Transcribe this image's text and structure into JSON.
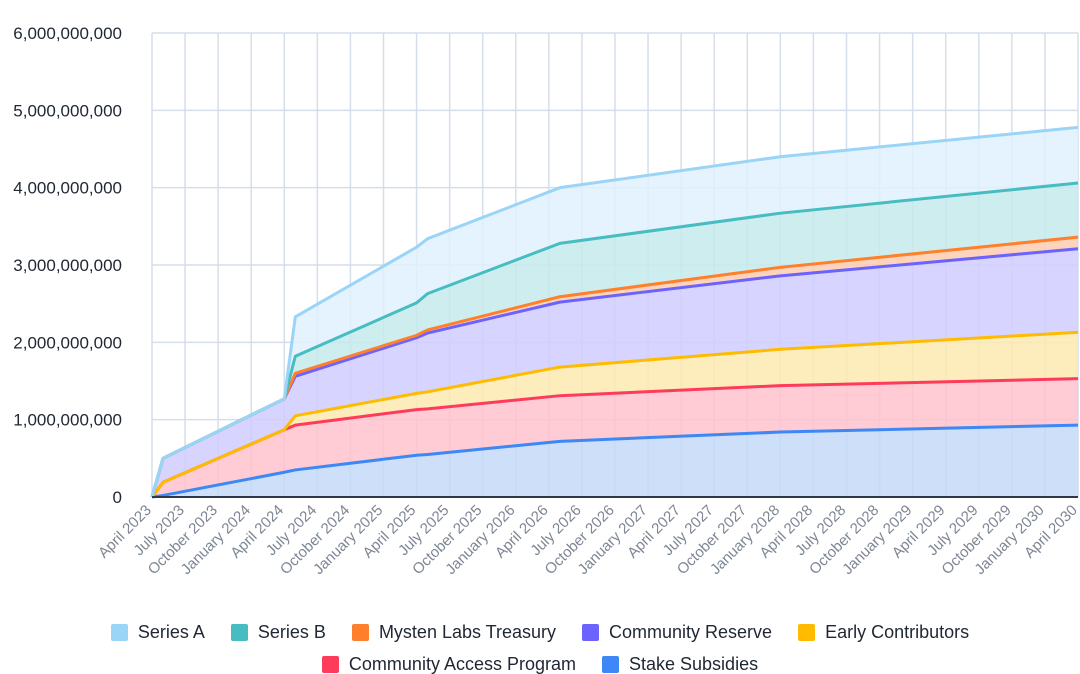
{
  "chart_data": {
    "type": "area",
    "stacked": true,
    "title": "",
    "xlabel": "",
    "ylabel": "",
    "ylim": [
      0,
      6000000000
    ],
    "grid": true,
    "legend_position": "bottom",
    "y_ticks": [
      "0",
      "1,000,000,000",
      "2,000,000,000",
      "3,000,000,000",
      "4,000,000,000",
      "5,000,000,000",
      "6,000,000,000"
    ],
    "x_ticks": [
      "April 2023",
      "July 2023",
      "October 2023",
      "January 2024",
      "April 2024",
      "July 2024",
      "October 2024",
      "January 2025",
      "April 2025",
      "July 2025",
      "October 2025",
      "January 2026",
      "April 2026",
      "July 2026",
      "October 2026",
      "January 2027",
      "April 2027",
      "July 2027",
      "October 2027",
      "January 2028",
      "April 2028",
      "July 2028",
      "October 2028",
      "January 2029",
      "April 2029",
      "July 2029",
      "October 2029",
      "January 2030",
      "April 2030"
    ],
    "x": [
      "2023-04",
      "2023-05",
      "2024-04",
      "2024-05",
      "2025-04",
      "2025-05",
      "2026-05",
      "2028-01",
      "2030-04"
    ],
    "series": [
      {
        "name": "Stake Subsidies",
        "color": "#3d88f5",
        "fill": "#c4d9f8",
        "values": [
          0,
          20000000,
          320000000,
          350000000,
          540000000,
          550000000,
          720000000,
          840000000,
          930000000
        ]
      },
      {
        "name": "Community Access Program",
        "color": "#ff3b5c",
        "fill": "#ffc2cd",
        "values": [
          0,
          170000000,
          550000000,
          580000000,
          590000000,
          590000000,
          590000000,
          600000000,
          600000000
        ]
      },
      {
        "name": "Early Contributors",
        "color": "#ffbb00",
        "fill": "#fdeab2",
        "values": [
          0,
          0,
          0,
          120000000,
          210000000,
          220000000,
          370000000,
          470000000,
          600000000
        ]
      },
      {
        "name": "Community Reserve",
        "color": "#6c63ff",
        "fill": "#d0ceff",
        "values": [
          0,
          310000000,
          400000000,
          510000000,
          720000000,
          760000000,
          840000000,
          950000000,
          1080000000
        ]
      },
      {
        "name": "Mysten Labs Treasury",
        "color": "#ff7f2a",
        "fill": "#ffcdb0",
        "values": [
          0,
          0,
          0,
          40000000,
          30000000,
          40000000,
          70000000,
          110000000,
          150000000
        ]
      },
      {
        "name": "Series B",
        "color": "#47bdc2",
        "fill": "#c6eaec",
        "values": [
          0,
          0,
          0,
          220000000,
          420000000,
          470000000,
          690000000,
          700000000,
          700000000
        ]
      },
      {
        "name": "Series A",
        "color": "#9ad4f7",
        "fill": "#dff1fd",
        "values": [
          0,
          0,
          0,
          510000000,
          720000000,
          710000000,
          720000000,
          730000000,
          720000000
        ]
      }
    ],
    "legend_order": [
      "Series A",
      "Series B",
      "Mysten Labs Treasury",
      "Community Reserve",
      "Early Contributors",
      "Community Access Program",
      "Stake Subsidies"
    ]
  }
}
